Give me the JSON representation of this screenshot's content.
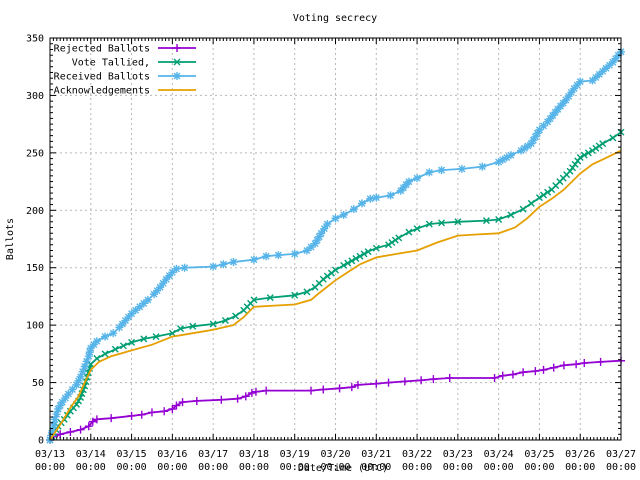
{
  "chart_data": {
    "type": "line",
    "title": "Voting secrecy",
    "xlabel": "Date/Time (UTC)",
    "ylabel": "Ballots",
    "x_tick_labels": [
      "03/13",
      "03/14",
      "03/15",
      "03/16",
      "03/17",
      "03/18",
      "03/19",
      "03/20",
      "03/21",
      "03/22",
      "03/23",
      "03/24",
      "03/25",
      "03/26",
      "03/27"
    ],
    "x_tick_sublabel": "00:00",
    "ylim": [
      0,
      350
    ],
    "y_tick_step": 50,
    "y_minor_step": 5,
    "x_minor_per_day": 12,
    "grid": true,
    "legend_position": "top-left",
    "axis_color": "#000000",
    "grid_color": "#b8b8b8",
    "series": [
      {
        "name": "Rejected Ballots",
        "color": "#9400d3",
        "marker": "plus",
        "points": [
          [
            0,
            0
          ],
          [
            0.1,
            3
          ],
          [
            0.25,
            5
          ],
          [
            0.5,
            7
          ],
          [
            0.75,
            9
          ],
          [
            0.95,
            12
          ],
          [
            1.05,
            16
          ],
          [
            1.15,
            18
          ],
          [
            1.5,
            19
          ],
          [
            2.0,
            21
          ],
          [
            2.25,
            22
          ],
          [
            2.5,
            24
          ],
          [
            2.8,
            25
          ],
          [
            3.0,
            27
          ],
          [
            3.1,
            30
          ],
          [
            3.25,
            33
          ],
          [
            3.6,
            34
          ],
          [
            4.2,
            35
          ],
          [
            4.6,
            36
          ],
          [
            4.8,
            38
          ],
          [
            4.95,
            41
          ],
          [
            5.05,
            42
          ],
          [
            5.3,
            43
          ],
          [
            6.4,
            43
          ],
          [
            6.7,
            44
          ],
          [
            7.1,
            45
          ],
          [
            7.4,
            46
          ],
          [
            7.55,
            48
          ],
          [
            8.0,
            49
          ],
          [
            8.3,
            50
          ],
          [
            8.7,
            51
          ],
          [
            9.1,
            52
          ],
          [
            9.4,
            53
          ],
          [
            9.8,
            54
          ],
          [
            10.9,
            54
          ],
          [
            11.1,
            56
          ],
          [
            11.35,
            57
          ],
          [
            11.6,
            59
          ],
          [
            11.9,
            60
          ],
          [
            12.1,
            61
          ],
          [
            12.35,
            63
          ],
          [
            12.6,
            65
          ],
          [
            12.9,
            66
          ],
          [
            13.1,
            67
          ],
          [
            13.5,
            68
          ],
          [
            14,
            69
          ]
        ]
      },
      {
        "name": "Vote Tallied,",
        "color": "#009e73",
        "marker": "cross",
        "points": [
          [
            0,
            0
          ],
          [
            0.1,
            6
          ],
          [
            0.2,
            12
          ],
          [
            0.35,
            18
          ],
          [
            0.5,
            25
          ],
          [
            0.65,
            31
          ],
          [
            0.75,
            37
          ],
          [
            0.85,
            47
          ],
          [
            1.0,
            66
          ],
          [
            1.15,
            71
          ],
          [
            1.35,
            75
          ],
          [
            1.6,
            79
          ],
          [
            1.8,
            82
          ],
          [
            2.0,
            85
          ],
          [
            2.3,
            88
          ],
          [
            2.6,
            90
          ],
          [
            3.0,
            93
          ],
          [
            3.2,
            97
          ],
          [
            3.5,
            99
          ],
          [
            4.0,
            101
          ],
          [
            4.3,
            104
          ],
          [
            4.55,
            108
          ],
          [
            4.75,
            113
          ],
          [
            5.0,
            122
          ],
          [
            5.4,
            124
          ],
          [
            6.0,
            126
          ],
          [
            6.3,
            129
          ],
          [
            6.5,
            133
          ],
          [
            6.7,
            140
          ],
          [
            7.0,
            148
          ],
          [
            7.2,
            152
          ],
          [
            7.5,
            158
          ],
          [
            7.8,
            164
          ],
          [
            8.0,
            167
          ],
          [
            8.3,
            170
          ],
          [
            8.55,
            176
          ],
          [
            8.8,
            181
          ],
          [
            9.0,
            184
          ],
          [
            9.3,
            188
          ],
          [
            9.6,
            189
          ],
          [
            10.0,
            190
          ],
          [
            10.7,
            191
          ],
          [
            11.0,
            192
          ],
          [
            11.3,
            196
          ],
          [
            11.6,
            201
          ],
          [
            11.8,
            206
          ],
          [
            12.0,
            211
          ],
          [
            12.3,
            218
          ],
          [
            12.5,
            225
          ],
          [
            12.75,
            234
          ],
          [
            13.0,
            246
          ],
          [
            13.3,
            252
          ],
          [
            13.55,
            258
          ],
          [
            13.8,
            263
          ],
          [
            14,
            268
          ]
        ]
      },
      {
        "name": "Received Ballots",
        "color": "#56b4e9",
        "marker": "star",
        "points": [
          [
            0,
            0
          ],
          [
            0.06,
            8
          ],
          [
            0.12,
            18
          ],
          [
            0.2,
            27
          ],
          [
            0.3,
            33
          ],
          [
            0.45,
            40
          ],
          [
            0.55,
            44
          ],
          [
            0.65,
            48
          ],
          [
            0.75,
            55
          ],
          [
            0.85,
            64
          ],
          [
            0.95,
            73
          ],
          [
            1.0,
            80
          ],
          [
            1.15,
            86
          ],
          [
            1.35,
            90
          ],
          [
            1.55,
            93
          ],
          [
            1.7,
            98
          ],
          [
            1.85,
            104
          ],
          [
            2.0,
            110
          ],
          [
            2.2,
            116
          ],
          [
            2.4,
            122
          ],
          [
            2.55,
            127
          ],
          [
            2.7,
            133
          ],
          [
            2.85,
            140
          ],
          [
            3.0,
            146
          ],
          [
            3.1,
            149
          ],
          [
            3.3,
            150
          ],
          [
            4.0,
            151
          ],
          [
            4.25,
            153
          ],
          [
            4.5,
            155
          ],
          [
            5.0,
            157
          ],
          [
            5.3,
            160
          ],
          [
            5.6,
            161
          ],
          [
            6.0,
            162
          ],
          [
            6.3,
            165
          ],
          [
            6.5,
            171
          ],
          [
            6.65,
            180
          ],
          [
            6.8,
            188
          ],
          [
            7.0,
            193
          ],
          [
            7.2,
            196
          ],
          [
            7.45,
            201
          ],
          [
            7.65,
            206
          ],
          [
            7.85,
            210
          ],
          [
            8.0,
            211
          ],
          [
            8.35,
            213
          ],
          [
            8.6,
            217
          ],
          [
            8.8,
            225
          ],
          [
            9.0,
            228
          ],
          [
            9.3,
            233
          ],
          [
            9.6,
            235
          ],
          [
            10.1,
            236
          ],
          [
            10.6,
            238
          ],
          [
            11.0,
            242
          ],
          [
            11.3,
            248
          ],
          [
            11.55,
            252
          ],
          [
            11.8,
            258
          ],
          [
            12.0,
            270
          ],
          [
            12.2,
            277
          ],
          [
            12.45,
            288
          ],
          [
            12.65,
            296
          ],
          [
            12.85,
            306
          ],
          [
            13.0,
            312
          ],
          [
            13.3,
            313
          ],
          [
            13.55,
            321
          ],
          [
            13.8,
            329
          ],
          [
            14,
            338
          ]
        ]
      },
      {
        "name": "Acknowledgements",
        "color": "#e69f00",
        "marker": "none",
        "points": [
          [
            0,
            0
          ],
          [
            0.15,
            8
          ],
          [
            0.3,
            16
          ],
          [
            0.5,
            28
          ],
          [
            0.7,
            38
          ],
          [
            0.85,
            50
          ],
          [
            1.0,
            61
          ],
          [
            1.2,
            68
          ],
          [
            1.5,
            73
          ],
          [
            2.0,
            78
          ],
          [
            2.5,
            83
          ],
          [
            3.0,
            90
          ],
          [
            3.5,
            93
          ],
          [
            4.0,
            96
          ],
          [
            4.5,
            100
          ],
          [
            4.75,
            107
          ],
          [
            5.0,
            116
          ],
          [
            5.5,
            117
          ],
          [
            6.0,
            118
          ],
          [
            6.4,
            122
          ],
          [
            6.6,
            128
          ],
          [
            7.0,
            139
          ],
          [
            7.3,
            146
          ],
          [
            7.6,
            153
          ],
          [
            8.0,
            159
          ],
          [
            8.5,
            162
          ],
          [
            9.0,
            165
          ],
          [
            9.5,
            172
          ],
          [
            10.0,
            178
          ],
          [
            10.5,
            179
          ],
          [
            11.0,
            180
          ],
          [
            11.4,
            185
          ],
          [
            11.7,
            193
          ],
          [
            12.0,
            203
          ],
          [
            12.3,
            210
          ],
          [
            12.6,
            218
          ],
          [
            13.0,
            232
          ],
          [
            13.3,
            240
          ],
          [
            13.6,
            245
          ],
          [
            14,
            252
          ]
        ]
      }
    ]
  }
}
